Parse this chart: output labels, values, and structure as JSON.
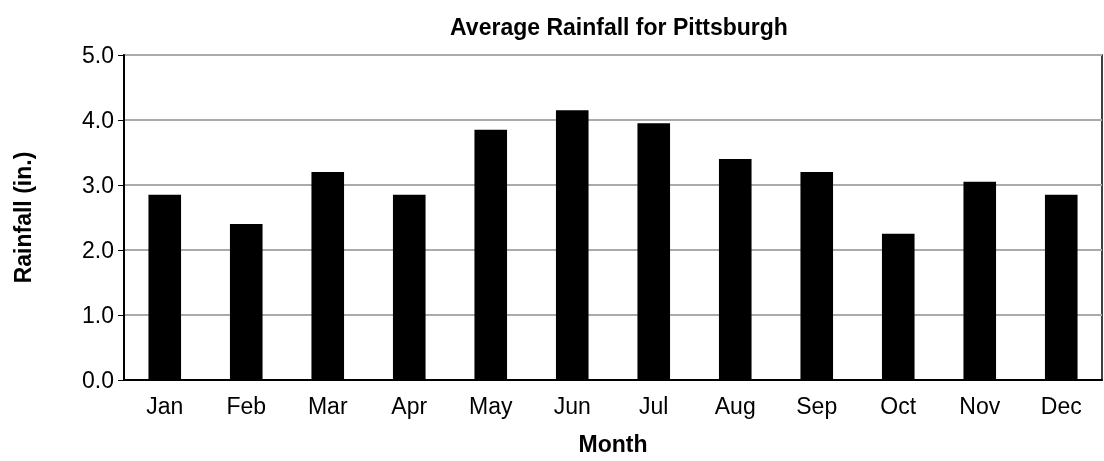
{
  "chart_data": {
    "type": "bar",
    "title": "Average Rainfall for Pittsburgh",
    "xlabel": "Month",
    "ylabel": "Rainfall (in.)",
    "categories": [
      "Jan",
      "Feb",
      "Mar",
      "Apr",
      "May",
      "Jun",
      "Jul",
      "Aug",
      "Sep",
      "Oct",
      "Nov",
      "Dec"
    ],
    "values": [
      2.85,
      2.4,
      3.2,
      2.85,
      3.85,
      4.15,
      3.95,
      3.4,
      3.2,
      2.25,
      3.05,
      2.85
    ],
    "color": "#000000",
    "ylim": [
      0,
      5
    ],
    "yticks": [
      {
        "value": 0,
        "label": "0.0"
      },
      {
        "value": 1,
        "label": "1.0"
      },
      {
        "value": 2,
        "label": "2.0"
      },
      {
        "value": 3,
        "label": "3.0"
      },
      {
        "value": 4,
        "label": "4.0"
      },
      {
        "value": 5,
        "label": "5.0"
      }
    ],
    "grid": "y"
  }
}
